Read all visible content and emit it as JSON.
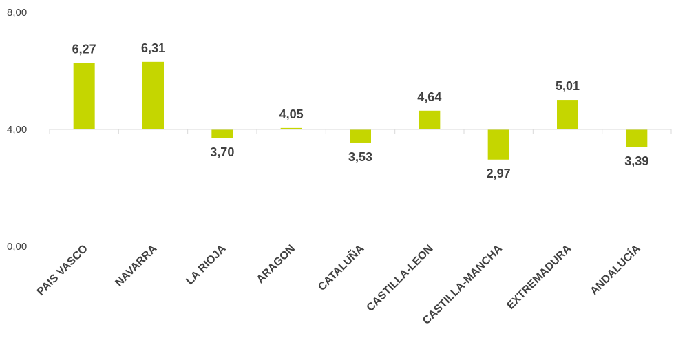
{
  "chart_data": {
    "type": "bar",
    "title": "",
    "xlabel": "",
    "ylabel": "",
    "categories": [
      "PAIS VASCO",
      "NAVARRA",
      "LA RIOJA",
      "ARAGON",
      "CATALUÑA",
      "CASTILLA-LEON",
      "CASTILLA-MANCHA",
      "EXTREMADURA",
      "ANDALUCÍA"
    ],
    "values": [
      6.27,
      6.31,
      3.7,
      4.05,
      3.53,
      4.64,
      2.97,
      5.01,
      3.39
    ],
    "value_labels": [
      "6,27",
      "6,31",
      "3,70",
      "4,05",
      "3,53",
      "4,64",
      "2,97",
      "5,01",
      "3,39"
    ],
    "baseline": 4.0,
    "ylim": [
      0,
      8
    ],
    "yticks": [
      8,
      4,
      0
    ],
    "ytick_labels": [
      "8,00",
      "4,00",
      "0,00"
    ],
    "grid": false,
    "legend": "none",
    "bar_color": "#c5d600",
    "text_color": "#404040",
    "axis_color": "#d9d9d9"
  }
}
